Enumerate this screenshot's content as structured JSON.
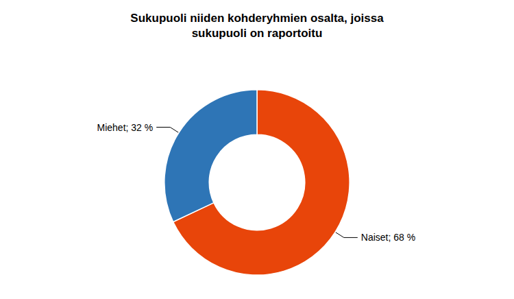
{
  "chart_data": {
    "type": "donut",
    "title": "Sukupuoli niiden kohderyhmien osalta, joissa\nsukupuoli on raportoitu",
    "categories": [
      "Naiset; 68 %",
      "Miehet; 32 %"
    ],
    "values": [
      68,
      32
    ],
    "colors": [
      "#E8450A",
      "#2E75B6"
    ],
    "legend": false
  }
}
